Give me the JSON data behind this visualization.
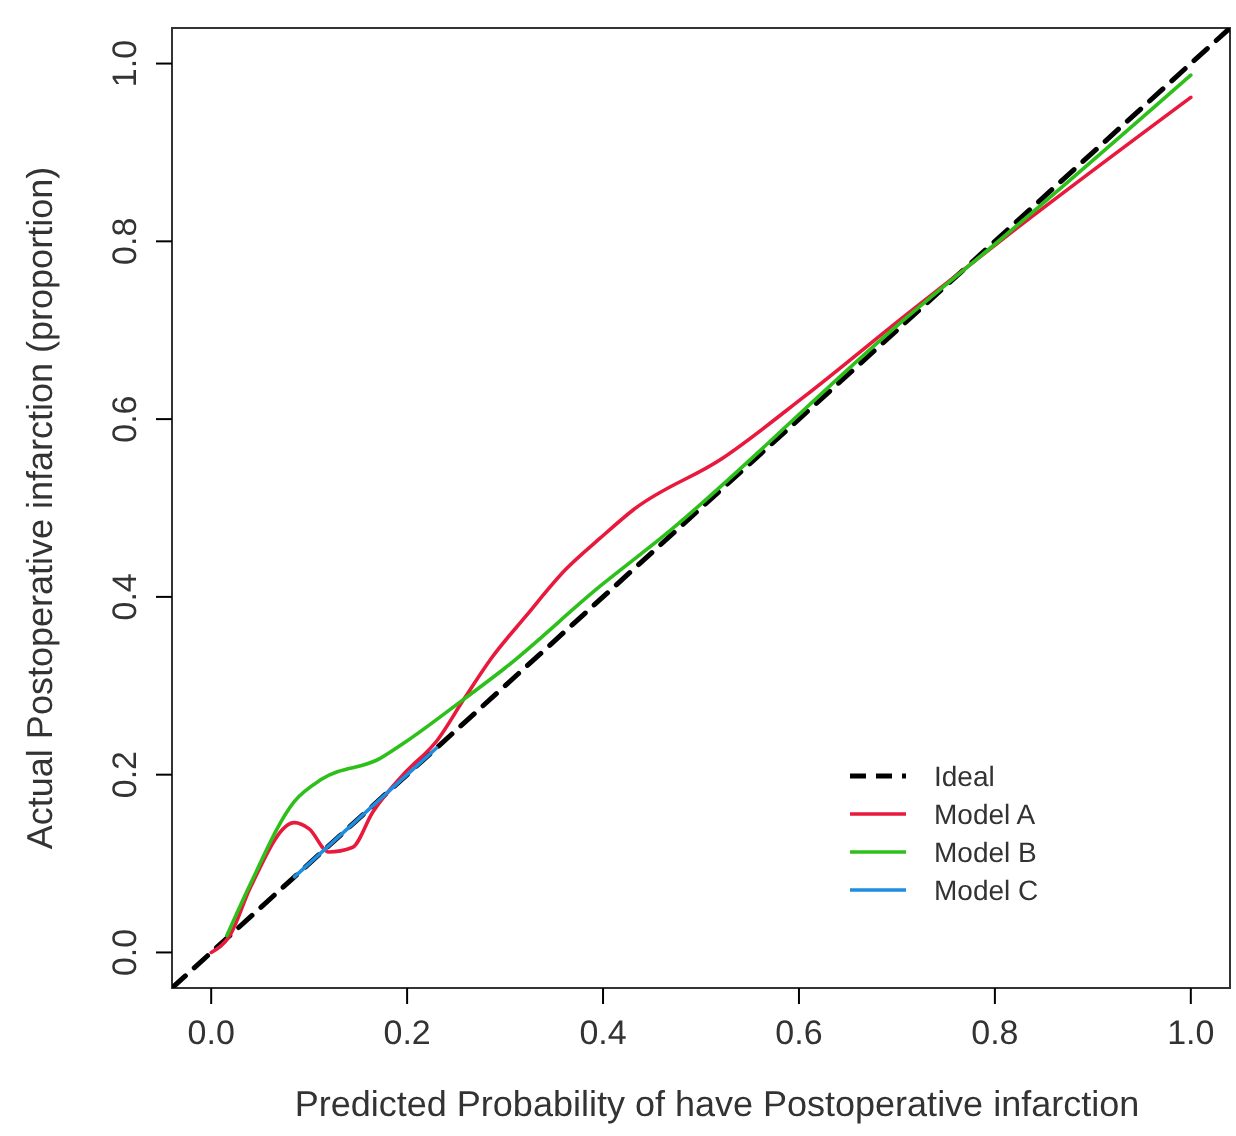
{
  "chart_data": {
    "type": "line",
    "xlabel": "Predicted Probability of have Postoperative infarction",
    "ylabel": "Actual Postoperative infarction (proportion)",
    "xlim": [
      -0.04,
      1.04
    ],
    "ylim": [
      -0.04,
      1.04
    ],
    "xticks": [
      {
        "value": 0,
        "label": "0.0"
      },
      0.2,
      0.4,
      0.6,
      0.8,
      {
        "value": 1,
        "label": "1.0"
      }
    ],
    "yticks": [
      {
        "value": 0,
        "label": "0.0"
      },
      0.2,
      0.4,
      0.6,
      0.8,
      {
        "value": 1,
        "label": "1.0"
      }
    ],
    "grid": false,
    "legend": "bottom right",
    "series": [
      {
        "name": "Ideal",
        "color": "#000000",
        "line_style": "dashed",
        "x": [
          -0.04,
          1.04
        ],
        "values": [
          -0.04,
          1.04
        ]
      },
      {
        "name": "Model A",
        "color": "#e8193c",
        "line_style": "solid",
        "x": [
          0,
          0.019,
          0.04,
          0.085,
          0.1,
          0.12,
          0.144,
          0.165,
          0.196,
          0.231,
          0.258,
          0.286,
          0.321,
          0.362,
          0.397,
          0.431,
          0.522,
          0.605,
          0.709,
          0.812,
          1.0
        ],
        "values": [
          0,
          0.019,
          0.073,
          0.146,
          0.139,
          0.113,
          0.118,
          0.158,
          0.2,
          0.239,
          0.285,
          0.331,
          0.378,
          0.431,
          0.466,
          0.498,
          0.556,
          0.625,
          0.717,
          0.806,
          0.962
        ]
      },
      {
        "name": "Model B",
        "color": "#2ec01a",
        "line_style": "solid",
        "x": [
          0.016,
          0.04,
          0.085,
          0.113,
          0.172,
          0.196,
          0.258,
          0.3,
          0.397,
          0.459,
          0.7,
          0.81,
          1.0
        ],
        "values": [
          0.019,
          0.077,
          0.17,
          0.195,
          0.218,
          0.235,
          0.285,
          0.32,
          0.412,
          0.466,
          0.705,
          0.806,
          0.987
        ]
      },
      {
        "name": "Model C",
        "color": "#1f8de0",
        "line_style": "solid",
        "x": [
          0.085,
          0.23
        ],
        "values": [
          0.085,
          0.23
        ]
      }
    ]
  }
}
